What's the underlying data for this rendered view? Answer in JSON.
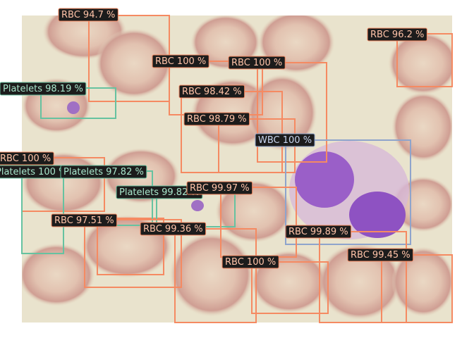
{
  "detections": [
    {
      "label": "RBC 94.7 %",
      "color": "#f58a62"
    },
    {
      "label": "RBC 96.2 %",
      "color": "#f58a62"
    },
    {
      "label": "RBC 100 %",
      "color": "#f58a62"
    },
    {
      "label": "RBC 100 %",
      "color": "#f58a62"
    },
    {
      "label": "Platelets 98.19 %",
      "color": "#66c2a0"
    },
    {
      "label": "RBC 98.42 %",
      "color": "#f58a62"
    },
    {
      "label": "RBC 98.79 %",
      "color": "#f58a62"
    },
    {
      "label": "WBC 100 %",
      "color": "#8ea4cc"
    },
    {
      "label": "RBC 100 %",
      "color": "#f58a62"
    },
    {
      "label": "Platelets 100 %",
      "color": "#66c2a0"
    },
    {
      "label": "Platelets 97.82 %",
      "color": "#66c2a0"
    },
    {
      "label": "Platelets 99.82 %",
      "color": "#66c2a0"
    },
    {
      "label": "RBC 99.97 %",
      "color": "#f58a62"
    },
    {
      "label": "RBC 97.51 %",
      "color": "#f58a62"
    },
    {
      "label": "RBC 99.36 %",
      "color": "#f58a62"
    },
    {
      "label": "RBC 99.89 %",
      "color": "#f58a62"
    },
    {
      "label": "RBC 100 %",
      "color": "#f58a62"
    },
    {
      "label": "RBC 99.45 %",
      "color": "#f58a62"
    }
  ]
}
